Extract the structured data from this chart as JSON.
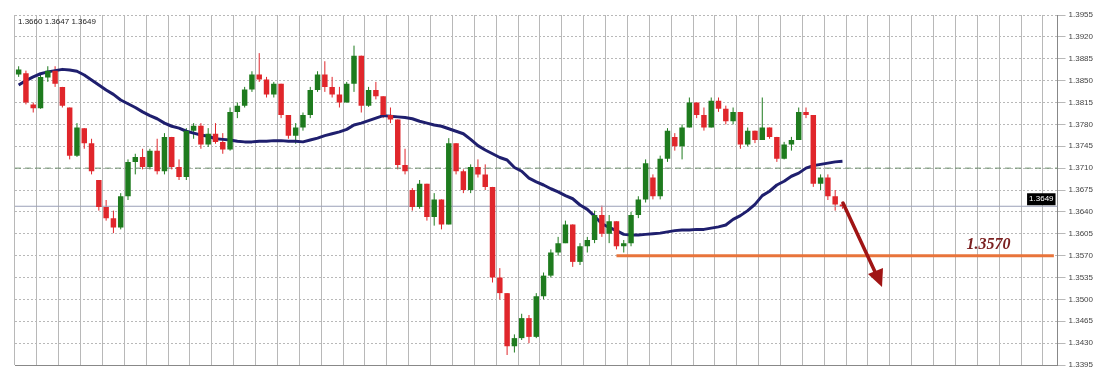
{
  "chart_data": {
    "type": "candlestick",
    "categories": [
      null,
      null,
      null,
      null,
      null,
      null,
      null,
      null,
      null,
      null,
      null,
      null,
      null,
      null,
      null,
      null,
      null,
      null,
      null,
      null,
      null,
      null,
      null,
      null,
      null,
      null,
      null,
      null,
      null,
      null,
      null,
      null,
      null,
      null,
      null,
      null,
      null,
      null,
      null,
      null,
      null,
      null,
      null,
      null,
      null,
      null,
      null,
      null,
      null,
      null,
      null,
      null,
      null,
      null,
      null,
      null,
      null,
      null,
      null,
      null,
      null,
      null,
      null,
      null,
      null,
      null,
      null,
      null,
      null,
      null,
      null,
      null,
      null,
      null,
      null,
      null,
      null,
      null,
      null,
      null,
      null,
      null,
      null,
      null,
      null,
      null,
      null,
      null,
      null,
      null,
      null,
      null,
      null,
      null,
      null,
      null,
      null,
      null,
      null,
      null,
      null,
      null,
      null,
      null,
      null,
      null,
      null,
      null,
      null,
      null,
      null,
      null,
      null,
      null,
      null,
      null,
      null,
      null,
      null,
      null,
      null,
      null,
      null,
      null,
      null,
      null,
      null,
      null,
      null,
      null,
      null,
      null,
      null,
      null,
      null,
      null,
      null,
      null,
      null,
      null,
      null,
      null,
      null
    ],
    "ohlc": [
      [
        1.386,
        1.3873,
        1.3856,
        1.3868
      ],
      [
        1.3862,
        1.3866,
        1.3812,
        1.3815
      ],
      [
        1.3812,
        1.3815,
        1.3799,
        1.3806
      ],
      [
        1.3806,
        1.386,
        1.3805,
        1.3856
      ],
      [
        1.3855,
        1.3873,
        1.3848,
        1.3866
      ],
      [
        1.3866,
        1.3873,
        1.384,
        1.3845
      ],
      [
        1.384,
        1.384,
        1.3807,
        1.381
      ],
      [
        1.3807,
        1.3807,
        1.3724,
        1.373
      ],
      [
        1.373,
        1.3782,
        1.3728,
        1.3775
      ],
      [
        1.3774,
        1.3774,
        1.3741,
        1.375
      ],
      [
        1.375,
        1.3757,
        1.37,
        1.3705
      ],
      [
        1.3691,
        1.3691,
        1.3642,
        1.3648
      ],
      [
        1.3648,
        1.3659,
        1.3626,
        1.363
      ],
      [
        1.363,
        1.3642,
        1.3606,
        1.3615
      ],
      [
        1.3615,
        1.367,
        1.3612,
        1.3665
      ],
      [
        1.3665,
        1.3724,
        1.3659,
        1.372
      ],
      [
        1.372,
        1.3733,
        1.37,
        1.3728
      ],
      [
        1.3728,
        1.3741,
        1.3708,
        1.3712
      ],
      [
        1.3712,
        1.3741,
        1.3708,
        1.3738
      ],
      [
        1.3738,
        1.3757,
        1.37,
        1.3705
      ],
      [
        1.3705,
        1.3766,
        1.37,
        1.376
      ],
      [
        1.376,
        1.376,
        1.3708,
        1.3712
      ],
      [
        1.3712,
        1.3724,
        1.3691,
        1.3696
      ],
      [
        1.3696,
        1.3774,
        1.3691,
        1.377
      ],
      [
        1.377,
        1.3782,
        1.3757,
        1.3778
      ],
      [
        1.3778,
        1.3782,
        1.3741,
        1.3748
      ],
      [
        1.3748,
        1.3774,
        1.3744,
        1.3765
      ],
      [
        1.3765,
        1.3782,
        1.3749,
        1.3752
      ],
      [
        1.3752,
        1.3766,
        1.3733,
        1.374
      ],
      [
        1.374,
        1.3807,
        1.3738,
        1.38
      ],
      [
        1.38,
        1.3815,
        1.379,
        1.381
      ],
      [
        1.381,
        1.384,
        1.3807,
        1.3836
      ],
      [
        1.3836,
        1.3865,
        1.3832,
        1.386
      ],
      [
        1.386,
        1.3894,
        1.3848,
        1.3852
      ],
      [
        1.3852,
        1.3856,
        1.3823,
        1.3828
      ],
      [
        1.3828,
        1.3848,
        1.3823,
        1.3845
      ],
      [
        1.3845,
        1.3845,
        1.379,
        1.3795
      ],
      [
        1.3795,
        1.3795,
        1.3757,
        1.3762
      ],
      [
        1.3762,
        1.3782,
        1.3749,
        1.3775
      ],
      [
        1.3775,
        1.3799,
        1.377,
        1.3795
      ],
      [
        1.3795,
        1.384,
        1.379,
        1.3835
      ],
      [
        1.3835,
        1.3865,
        1.3832,
        1.386
      ],
      [
        1.386,
        1.3881,
        1.3832,
        1.384
      ],
      [
        1.384,
        1.3856,
        1.3823,
        1.3828
      ],
      [
        1.3828,
        1.384,
        1.3807,
        1.3815
      ],
      [
        1.3815,
        1.3848,
        1.3815,
        1.3845
      ],
      [
        1.3845,
        1.3906,
        1.3832,
        1.389
      ],
      [
        1.389,
        1.389,
        1.3799,
        1.381
      ],
      [
        1.381,
        1.384,
        1.3808,
        1.3835
      ],
      [
        1.3835,
        1.3848,
        1.382,
        1.3825
      ],
      [
        1.3825,
        1.3825,
        1.379,
        1.3795
      ],
      [
        1.3795,
        1.3807,
        1.3782,
        1.3788
      ],
      [
        1.3788,
        1.3788,
        1.3708,
        1.3715
      ],
      [
        1.3715,
        1.3741,
        1.37,
        1.3705
      ],
      [
        1.3675,
        1.3678,
        1.3642,
        1.3648
      ],
      [
        1.3648,
        1.3691,
        1.3645,
        1.3685
      ],
      [
        1.3685,
        1.3685,
        1.3626,
        1.3632
      ],
      [
        1.3632,
        1.367,
        1.3618,
        1.366
      ],
      [
        1.366,
        1.366,
        1.3612,
        1.362
      ],
      [
        1.362,
        1.3758,
        1.362,
        1.375
      ],
      [
        1.375,
        1.375,
        1.37,
        1.3705
      ],
      [
        1.3705,
        1.3708,
        1.367,
        1.3675
      ],
      [
        1.3675,
        1.3716,
        1.367,
        1.3712
      ],
      [
        1.3712,
        1.3724,
        1.3695,
        1.37
      ],
      [
        1.37,
        1.3716,
        1.3675,
        1.368
      ],
      [
        1.368,
        1.368,
        1.3527,
        1.3535
      ],
      [
        1.3535,
        1.355,
        1.35,
        1.351
      ],
      [
        1.351,
        1.351,
        1.3411,
        1.3425
      ],
      [
        1.3425,
        1.3444,
        1.3415,
        1.3438
      ],
      [
        1.3438,
        1.3477,
        1.3435,
        1.347
      ],
      [
        1.347,
        1.3475,
        1.343,
        1.344
      ],
      [
        1.344,
        1.351,
        1.3438,
        1.3505
      ],
      [
        1.3505,
        1.3543,
        1.35,
        1.3538
      ],
      [
        1.3538,
        1.358,
        1.3535,
        1.3575
      ],
      [
        1.3575,
        1.36,
        1.357,
        1.359
      ],
      [
        1.359,
        1.3626,
        1.359,
        1.362
      ],
      [
        1.362,
        1.362,
        1.3552,
        1.356
      ],
      [
        1.356,
        1.359,
        1.3555,
        1.3585
      ],
      [
        1.3585,
        1.36,
        1.3575,
        1.3595
      ],
      [
        1.3595,
        1.3642,
        1.359,
        1.3635
      ],
      [
        1.3635,
        1.365,
        1.36,
        1.3605
      ],
      [
        1.3605,
        1.3635,
        1.359,
        1.3625
      ],
      [
        1.3625,
        1.3625,
        1.358,
        1.3585
      ],
      [
        1.3585,
        1.3595,
        1.3575,
        1.359
      ],
      [
        1.359,
        1.364,
        1.3585,
        1.3635
      ],
      [
        1.3635,
        1.3665,
        1.363,
        1.366
      ],
      [
        1.366,
        1.3724,
        1.3655,
        1.3718
      ],
      [
        1.3695,
        1.37,
        1.366,
        1.3665
      ],
      [
        1.3665,
        1.373,
        1.366,
        1.3725
      ],
      [
        1.3725,
        1.3774,
        1.372,
        1.377
      ],
      [
        1.376,
        1.3766,
        1.3738,
        1.3745
      ],
      [
        1.3745,
        1.378,
        1.3724,
        1.3775
      ],
      [
        1.3775,
        1.3823,
        1.3775,
        1.3815
      ],
      [
        1.3815,
        1.3815,
        1.379,
        1.3795
      ],
      [
        1.3795,
        1.3807,
        1.377,
        1.3775
      ],
      [
        1.3775,
        1.3823,
        1.3775,
        1.3818
      ],
      [
        1.3818,
        1.3823,
        1.38,
        1.3805
      ],
      [
        1.3805,
        1.381,
        1.378,
        1.3785
      ],
      [
        1.3785,
        1.3807,
        1.378,
        1.38
      ],
      [
        1.38,
        1.38,
        1.3741,
        1.3748
      ],
      [
        1.3748,
        1.3775,
        1.3745,
        1.377
      ],
      [
        1.377,
        1.377,
        1.375,
        1.3755
      ],
      [
        1.3755,
        1.3823,
        1.3755,
        1.3775
      ],
      [
        1.3775,
        1.3775,
        1.3757,
        1.376
      ],
      [
        1.376,
        1.376,
        1.372,
        1.3725
      ],
      [
        1.3725,
        1.3752,
        1.3724,
        1.3748
      ],
      [
        1.3748,
        1.376,
        1.3738,
        1.3755
      ],
      [
        1.3755,
        1.3807,
        1.3755,
        1.38
      ],
      [
        1.38,
        1.3807,
        1.379,
        1.3795
      ],
      [
        1.3795,
        1.3795,
        1.368,
        1.3685
      ],
      [
        1.3685,
        1.37,
        1.3675,
        1.3695
      ],
      [
        1.3695,
        1.37,
        1.3659,
        1.3665
      ],
      [
        1.3665,
        1.3675,
        1.3642,
        1.3652
      ],
      [
        1.3652,
        1.3655,
        1.3645,
        1.3649
      ],
      null,
      null,
      null,
      null,
      null,
      null,
      null,
      null,
      null,
      null,
      null,
      null,
      null,
      null,
      null,
      null,
      null,
      null,
      null,
      null,
      null,
      null,
      null,
      null,
      null,
      null,
      null,
      null,
      null
    ],
    "colors": [
      "#1e7b1e",
      "#e0262b",
      "#e0262b",
      "#1e7b1e",
      "#1e7b1e",
      "#e0262b",
      "#e0262b",
      "#e0262b",
      "#1e7b1e",
      "#e0262b",
      "#e0262b",
      "#e0262b",
      "#e0262b",
      "#e0262b",
      "#1e7b1e",
      "#1e7b1e",
      "#1e7b1e",
      "#e0262b",
      "#1e7b1e",
      "#e0262b",
      "#1e7b1e",
      "#e0262b",
      "#e0262b",
      "#1e7b1e",
      "#1e7b1e",
      "#e0262b",
      "#1e7b1e",
      "#e0262b",
      "#e0262b",
      "#1e7b1e",
      "#1e7b1e",
      "#1e7b1e",
      "#1e7b1e",
      "#e0262b",
      "#e0262b",
      "#1e7b1e",
      "#e0262b",
      "#e0262b",
      "#1e7b1e",
      "#1e7b1e",
      "#1e7b1e",
      "#1e7b1e",
      "#e0262b",
      "#e0262b",
      "#e0262b",
      "#1e7b1e",
      "#1e7b1e",
      "#e0262b",
      "#1e7b1e",
      "#e0262b",
      "#e0262b",
      "#e0262b",
      "#e0262b",
      "#e0262b",
      "#e0262b",
      "#1e7b1e",
      "#e0262b",
      "#1e7b1e",
      "#e0262b",
      "#1e7b1e",
      "#e0262b",
      "#e0262b",
      "#1e7b1e",
      "#e0262b",
      "#e0262b",
      "#e0262b",
      "#e0262b",
      "#e0262b",
      "#1e7b1e",
      "#1e7b1e",
      "#e0262b",
      "#1e7b1e",
      "#1e7b1e",
      "#1e7b1e",
      "#1e7b1e",
      "#1e7b1e",
      "#e0262b",
      "#1e7b1e",
      "#1e7b1e",
      "#1e7b1e",
      "#e0262b",
      "#1e7b1e",
      "#e0262b",
      "#1e7b1e",
      "#1e7b1e",
      "#1e7b1e",
      "#1e7b1e",
      "#e0262b",
      "#1e7b1e",
      "#1e7b1e",
      "#e0262b",
      "#1e7b1e",
      "#1e7b1e",
      "#e0262b",
      "#e0262b",
      "#1e7b1e",
      "#e0262b",
      "#e0262b",
      "#1e7b1e",
      "#e0262b",
      "#1e7b1e",
      "#e0262b",
      "#1e7b1e",
      "#e0262b",
      "#e0262b",
      "#1e7b1e",
      "#1e7b1e",
      "#1e7b1e",
      "#e0262b",
      "#e0262b",
      "#1e7b1e",
      "#e0262b",
      "#e0262b",
      "#e0262b",
      null,
      null,
      null,
      null,
      null,
      null,
      null,
      null,
      null,
      null,
      null,
      null,
      null,
      null,
      null,
      null,
      null,
      null,
      null,
      null,
      null,
      null,
      null,
      null,
      null,
      null,
      null,
      null,
      null
    ],
    "series": [
      {
        "type": "line",
        "color": "#1f1f6e",
        "values": [
          1.3843,
          1.385,
          1.3856,
          1.3861,
          1.3864,
          1.3866,
          1.3868,
          1.3867,
          1.3865,
          1.3859,
          1.3851,
          1.3843,
          1.3835,
          1.3828,
          1.3819,
          1.3813,
          1.3807,
          1.38,
          1.3794,
          1.3789,
          1.3782,
          1.3777,
          1.3774,
          1.3769,
          1.3766,
          1.3763,
          1.3761,
          1.3757,
          1.3756,
          1.3755,
          1.3753,
          1.3752,
          1.3752,
          1.3753,
          1.3753,
          1.3754,
          1.3754,
          1.3753,
          1.3753,
          1.3752,
          1.3755,
          1.3758,
          1.3762,
          1.3765,
          1.3768,
          1.3772,
          1.3779,
          1.3782,
          1.3786,
          1.379,
          1.3794,
          1.3793,
          1.3792,
          1.3791,
          1.3789,
          1.3785,
          1.3782,
          1.3779,
          1.3777,
          1.3773,
          1.3769,
          1.3765,
          1.3756,
          1.3746,
          1.3739,
          1.3733,
          1.3727,
          1.3723,
          1.3711,
          1.3705,
          1.3694,
          1.3688,
          1.3683,
          1.3677,
          1.3672,
          1.3666,
          1.3661,
          1.3651,
          1.3644,
          1.3633,
          1.3621,
          1.3615,
          1.361,
          1.3604,
          1.3603,
          1.3603,
          1.3604,
          1.3605,
          1.3606,
          1.3608,
          1.361,
          1.3611,
          1.3611,
          1.3612,
          1.3612,
          1.3614,
          1.3616,
          1.3619,
          1.3628,
          1.3634,
          1.3642,
          1.3652,
          1.3666,
          1.3673,
          1.3683,
          1.3689,
          1.3697,
          1.3702,
          1.371,
          1.3714,
          1.3716,
          1.3718,
          1.372,
          1.3721,
          null,
          null,
          null,
          null,
          null,
          null,
          null,
          null,
          null,
          null,
          null,
          null,
          null,
          null,
          null,
          null,
          null,
          null,
          null,
          null,
          null,
          null,
          null,
          null,
          null,
          null,
          null,
          null,
          null
        ]
      },
      {
        "type": "line",
        "color": "#e8743b",
        "values": [
          null,
          null,
          null,
          null,
          null,
          null,
          null,
          null,
          null,
          null,
          null,
          null,
          null,
          null,
          null,
          null,
          null,
          null,
          null,
          null,
          null,
          null,
          null,
          null,
          null,
          null,
          null,
          null,
          null,
          null,
          null,
          null,
          null,
          null,
          null,
          null,
          null,
          null,
          null,
          null,
          null,
          null,
          null,
          null,
          null,
          null,
          null,
          null,
          null,
          null,
          null,
          null,
          null,
          null,
          null,
          null,
          null,
          null,
          null,
          null,
          null,
          null,
          null,
          null,
          null,
          null,
          null,
          null,
          null,
          null,
          null,
          null,
          null,
          null,
          null,
          null,
          null,
          null,
          null,
          null,
          null,
          null,
          1.357,
          1.357,
          1.357,
          1.357,
          1.357,
          1.357,
          1.357,
          1.357,
          1.357,
          1.357,
          1.357,
          1.357,
          1.357,
          1.357,
          1.357,
          1.357,
          1.357,
          1.357,
          1.357,
          1.357,
          1.357,
          1.357,
          1.357,
          1.357,
          1.357,
          1.357,
          1.357,
          1.357,
          1.357,
          1.357,
          1.357,
          1.357,
          1.357,
          1.357,
          1.357,
          1.357,
          1.357,
          1.357,
          1.357,
          1.357,
          1.357,
          1.357,
          1.357,
          1.357,
          1.357,
          1.357,
          1.357,
          1.357,
          1.357,
          1.357,
          1.357,
          1.357,
          1.357,
          1.357,
          1.357,
          1.357,
          1.357,
          1.357,
          1.357,
          1.357,
          1.357
        ]
      }
    ],
    "ylim": [
      1.3395,
      1.3955
    ],
    "yticks": [
      {
        "value": 1.3395,
        "label": "1.3395"
      },
      {
        "value": 1.343,
        "label": "1.3430"
      },
      {
        "value": 1.3465,
        "label": "1.3465"
      },
      {
        "value": 1.35,
        "label": "1.3500"
      },
      {
        "value": 1.3535,
        "label": "1.3535"
      },
      {
        "value": 1.357,
        "label": "1.3570"
      },
      {
        "value": 1.3605,
        "label": "1.3605"
      },
      {
        "value": 1.364,
        "label": "1.3640"
      },
      {
        "value": 1.3675,
        "label": "1.3675"
      },
      {
        "value": 1.371,
        "label": "1.3710"
      },
      {
        "value": 1.3745,
        "label": "1.3745"
      },
      {
        "value": 1.378,
        "label": "1.3780"
      },
      {
        "value": 1.3815,
        "label": "1.3815"
      },
      {
        "value": 1.385,
        "label": "1.3850"
      },
      {
        "value": 1.3885,
        "label": "1.3885"
      },
      {
        "value": 1.392,
        "label": "1.3920"
      },
      {
        "value": 1.3955,
        "label": "1.3955"
      }
    ],
    "ref_lines": [
      {
        "axis": "y",
        "value": 1.371,
        "line_style": "dashed",
        "color": "#6b8f6b"
      },
      {
        "axis": "y",
        "value": 1.3649,
        "label": "1.3649",
        "color": "#9aa0b8"
      }
    ],
    "annotations": [
      "1.3660 1.3647 1.3649",
      {
        "text": "1.3570",
        "y": 1.357
      }
    ],
    "grid": true,
    "tick_labels": "y",
    "legend": false
  }
}
